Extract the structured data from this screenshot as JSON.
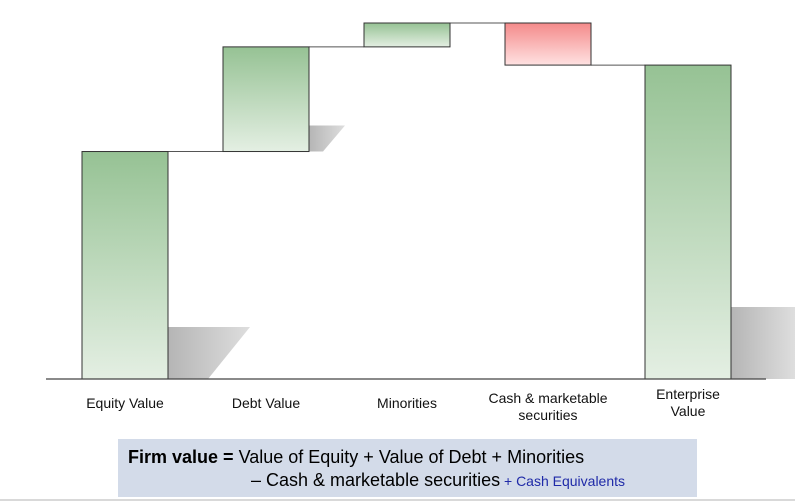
{
  "chart_data": {
    "type": "bar",
    "subtype": "waterfall",
    "categories": [
      "Equity Value",
      "Debt Value",
      "Minorities",
      "Cash & marketable securities",
      "Enterprise Value"
    ],
    "labels_display": [
      "Equity Value",
      "Debt Value",
      "Minorities",
      "Cash & marketable\nsecurities",
      "Enterprise\nValue"
    ],
    "bars": [
      {
        "label": "Equity Value",
        "start": 0,
        "end": 100,
        "kind": "total"
      },
      {
        "label": "Debt Value",
        "start": 100,
        "end": 146,
        "kind": "increase"
      },
      {
        "label": "Minorities",
        "start": 146,
        "end": 156.5,
        "kind": "increase"
      },
      {
        "label": "Cash & marketable securities",
        "start": 156.5,
        "end": 138,
        "kind": "decrease"
      },
      {
        "label": "Enterprise Value",
        "start": 0,
        "end": 138,
        "kind": "total"
      }
    ],
    "ylim": [
      0,
      156.5
    ],
    "grid": false,
    "colors": {
      "increase_top": "#96c294",
      "increase_bottom": "#e4efe3",
      "decrease_top": "#f48a8a",
      "decrease_bottom": "#ffe2e2",
      "outline": "#333333",
      "connector": "#555555",
      "shadow": "#bdbdbd"
    }
  },
  "formula": {
    "prefix_bold": "Firm value =",
    "line1_rest": " Value of Equity + Value of Debt + Minorities",
    "line2": "– Cash & marketable securities",
    "line2_extra": " + Cash Equivalents"
  }
}
